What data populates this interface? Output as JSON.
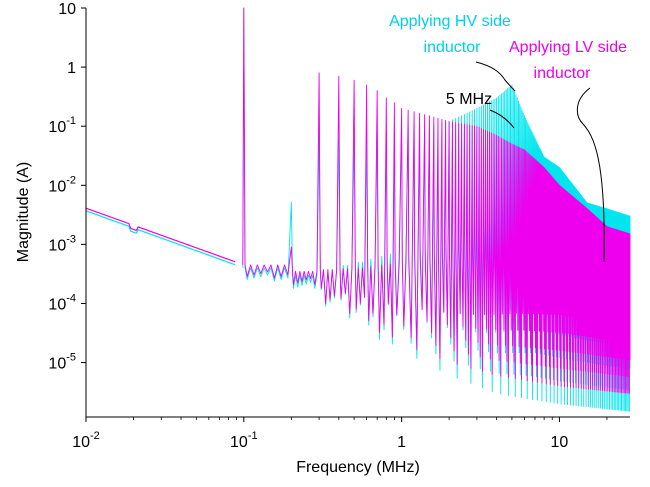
{
  "chart_data": {
    "type": "line",
    "xlabel": "Frequency (MHz)",
    "ylabel": "Magnitude (A)",
    "x_scale": "log",
    "y_scale": "log",
    "xlim": [
      0.01,
      28
    ],
    "ylim": [
      1.2e-06,
      10
    ],
    "x_ticks": [
      {
        "value": 0.01,
        "base": "10",
        "exp": "-2"
      },
      {
        "value": 0.1,
        "base": "10",
        "exp": "-1"
      },
      {
        "value": 1,
        "base": "1",
        "exp": ""
      },
      {
        "value": 10,
        "base": "10",
        "exp": ""
      }
    ],
    "y_ticks": [
      {
        "value": 10,
        "base": "10",
        "exp": ""
      },
      {
        "value": 1,
        "base": "1",
        "exp": ""
      },
      {
        "value": 0.1,
        "base": "10",
        "exp": "-1"
      },
      {
        "value": 0.01,
        "base": "10",
        "exp": "-2"
      },
      {
        "value": 0.001,
        "base": "10",
        "exp": "-3"
      },
      {
        "value": 0.0001,
        "base": "10",
        "exp": "-4"
      },
      {
        "value": 1e-05,
        "base": "10",
        "exp": "-5"
      }
    ],
    "grid": false,
    "fundamental_mhz": 0.1,
    "series": [
      {
        "name": "Applying HV side inductor",
        "color": "#00e5ee",
        "peaks": [
          [
            0.1,
            10
          ],
          [
            0.2,
            0.0052
          ],
          [
            0.3,
            0.08
          ],
          [
            0.4,
            0.06
          ],
          [
            0.5,
            0.06
          ],
          [
            0.6,
            0.06
          ],
          [
            0.7,
            0.07
          ],
          [
            0.8,
            0.08
          ],
          [
            0.9,
            0.09
          ],
          [
            1,
            0.1
          ],
          [
            1.5,
            0.1
          ],
          [
            2,
            0.12
          ],
          [
            3,
            0.2
          ],
          [
            4,
            0.3
          ],
          [
            5,
            0.5
          ],
          [
            6,
            0.15
          ],
          [
            8,
            0.03
          ],
          [
            10,
            0.02
          ],
          [
            15,
            0.005
          ],
          [
            20,
            0.004
          ],
          [
            28,
            0.003
          ]
        ],
        "envelope_high": [
          [
            0.01,
            0.0037
          ],
          [
            0.1,
            0.0004
          ],
          [
            0.2,
            0.0003
          ],
          [
            0.5,
            0.0005
          ],
          [
            1,
            0.0008
          ],
          [
            3,
            0.002
          ],
          [
            5,
            0.005
          ],
          [
            7,
            0.008
          ],
          [
            10,
            0.006
          ],
          [
            15,
            0.004
          ],
          [
            20,
            0.003
          ],
          [
            28,
            0.0025
          ]
        ],
        "envelope_low": [
          [
            0.3,
            9e-05
          ],
          [
            0.5,
            4e-05
          ],
          [
            1,
            1.5e-05
          ],
          [
            2,
            6e-06
          ],
          [
            4,
            3e-06
          ],
          [
            10,
            2e-06
          ],
          [
            28,
            1.5e-06
          ]
        ]
      },
      {
        "name": "Applying LV side inductor",
        "color": "#ee00ee",
        "peaks": [
          [
            0.1,
            10
          ],
          [
            0.2,
            0.0009
          ],
          [
            0.3,
            0.8
          ],
          [
            0.4,
            0.7
          ],
          [
            0.5,
            0.6
          ],
          [
            0.6,
            0.5
          ],
          [
            0.7,
            0.4
          ],
          [
            0.8,
            0.3
          ],
          [
            0.9,
            0.25
          ],
          [
            1,
            0.2
          ],
          [
            1.5,
            0.15
          ],
          [
            2,
            0.12
          ],
          [
            3,
            0.1
          ],
          [
            4,
            0.07
          ],
          [
            5,
            0.05
          ],
          [
            6,
            0.04
          ],
          [
            8,
            0.02
          ],
          [
            10,
            0.01
          ],
          [
            15,
            0.004
          ],
          [
            20,
            0.002
          ],
          [
            28,
            0.0015
          ]
        ],
        "envelope_high": [
          [
            0.01,
            0.0041
          ],
          [
            0.1,
            0.00045
          ],
          [
            0.2,
            0.00035
          ],
          [
            0.5,
            0.0004
          ],
          [
            1,
            0.0005
          ],
          [
            3,
            0.0009
          ],
          [
            5,
            0.0015
          ],
          [
            10,
            0.002
          ],
          [
            20,
            0.0013
          ],
          [
            28,
            0.001
          ]
        ],
        "envelope_low": [
          [
            0.3,
            0.0001
          ],
          [
            0.5,
            5e-05
          ],
          [
            1,
            2e-05
          ],
          [
            2,
            1e-05
          ],
          [
            4,
            6e-06
          ],
          [
            10,
            4e-06
          ],
          [
            28,
            3e-06
          ]
        ]
      }
    ],
    "annotations": [
      {
        "id": "hv",
        "lines": [
          "Applying HV side",
          "inductor"
        ],
        "color": "#00d0e8"
      },
      {
        "id": "lv",
        "lines": [
          "Applying LV side",
          "inductor"
        ],
        "color": "#ee00ee"
      },
      {
        "id": "fivemhz",
        "lines": [
          "5 MHz"
        ],
        "color": "#000000"
      }
    ]
  }
}
